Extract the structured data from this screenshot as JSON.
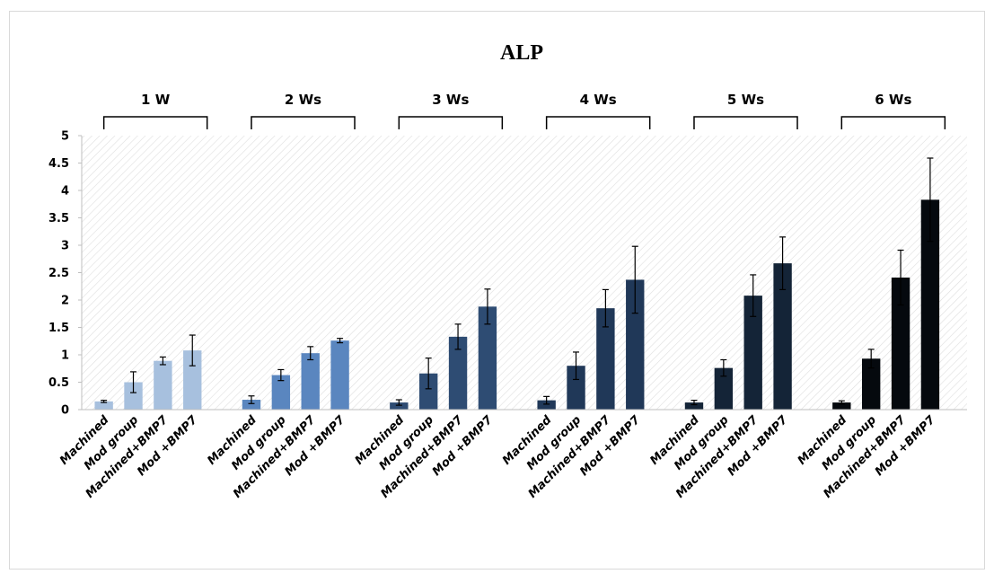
{
  "chart_data": {
    "type": "bar",
    "title": "ALP",
    "xlabel": "",
    "ylabel": "",
    "ylim": [
      0,
      5
    ],
    "yticks": [
      "0",
      "0.5",
      "1",
      "1.5",
      "2",
      "2.5",
      "3",
      "3.5",
      "4",
      "4.5",
      "5"
    ],
    "grid": "diagonal hatched plot background",
    "categories": [
      "Machined",
      "Mod group",
      "Machined+BMP7",
      "Mod +BMP7"
    ],
    "groups": [
      {
        "label": "1 W",
        "color": "#a7c0de",
        "values": [
          0.15,
          0.5,
          0.89,
          1.08
        ],
        "errors": [
          0.02,
          0.19,
          0.07,
          0.28
        ]
      },
      {
        "label": "2 Ws",
        "color": "#5a86bf",
        "values": [
          0.18,
          0.63,
          1.03,
          1.26
        ],
        "errors": [
          0.07,
          0.1,
          0.12,
          0.04
        ]
      },
      {
        "label": "3 Ws",
        "color": "#2e4c73",
        "values": [
          0.13,
          0.66,
          1.33,
          1.88
        ],
        "errors": [
          0.05,
          0.28,
          0.23,
          0.32
        ]
      },
      {
        "label": "4 Ws",
        "color": "#203858",
        "values": [
          0.17,
          0.8,
          1.85,
          2.37
        ],
        "errors": [
          0.07,
          0.25,
          0.34,
          0.61
        ]
      },
      {
        "label": "5 Ws",
        "color": "#142437",
        "values": [
          0.13,
          0.76,
          2.08,
          2.67
        ],
        "errors": [
          0.04,
          0.15,
          0.38,
          0.48
        ]
      },
      {
        "label": "6 Ws",
        "color": "#05090e",
        "values": [
          0.13,
          0.93,
          2.41,
          3.83
        ],
        "errors": [
          0.03,
          0.17,
          0.5,
          0.76
        ]
      }
    ]
  }
}
